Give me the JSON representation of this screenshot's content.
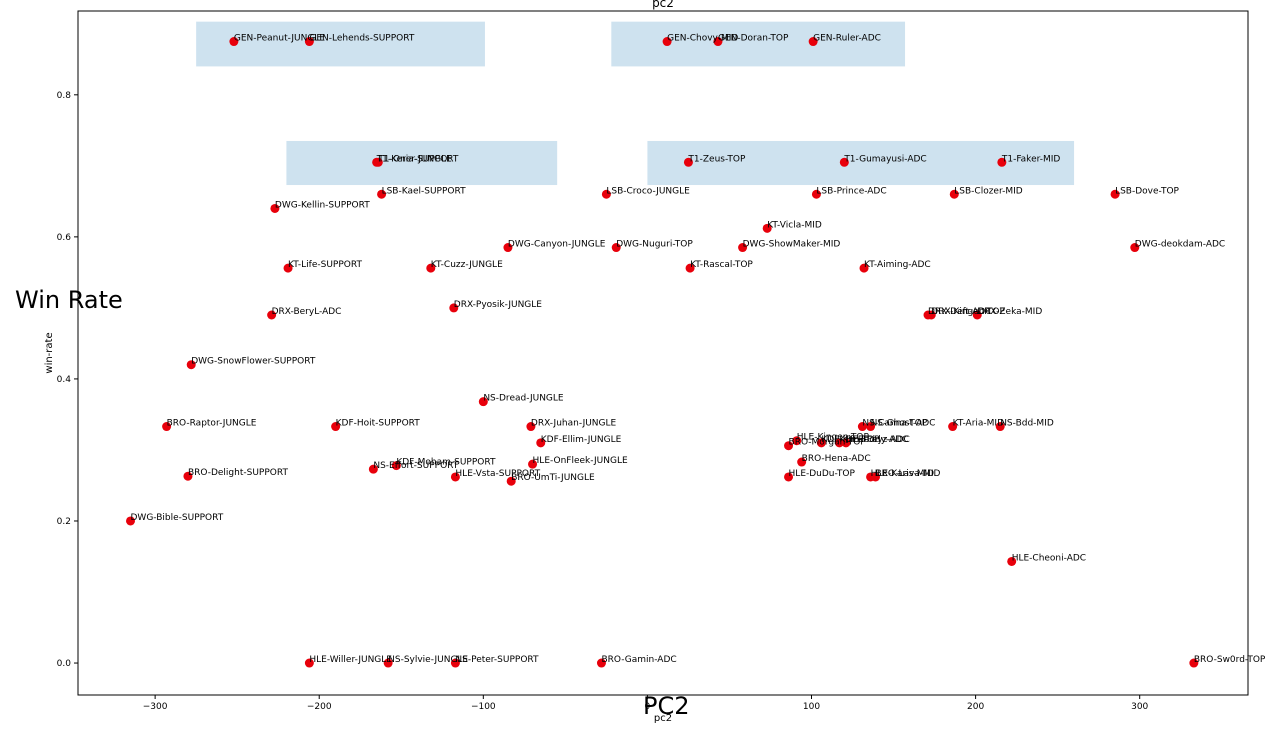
{
  "chart_data": {
    "type": "scatter",
    "title": "pc2",
    "xlabel": "pc2",
    "ylabel": "win-rate",
    "overlay_xlabel": "PC2",
    "overlay_ylabel": "Win Rate",
    "xlim": [
      -347,
      366
    ],
    "ylim": [
      -0.045,
      0.918
    ],
    "xticks": [
      -300,
      -200,
      -100,
      0,
      100,
      200,
      300
    ],
    "yticks": [
      0.0,
      0.2,
      0.4,
      0.6,
      0.8
    ],
    "xtick_labels": [
      "−300",
      "−200",
      "−100",
      "0",
      "100",
      "200",
      "300"
    ],
    "ytick_labels": [
      "0.0",
      "0.2",
      "0.4",
      "0.6",
      "0.8"
    ],
    "marker_color": "#e8000b",
    "highlight_color": "#b4d2e6",
    "highlight_regions": [
      {
        "x": [
          -275,
          -99
        ],
        "y": [
          0.84,
          0.903
        ]
      },
      {
        "x": [
          -22,
          157
        ],
        "y": [
          0.84,
          0.903
        ]
      },
      {
        "x": [
          -220,
          -55
        ],
        "y": [
          0.673,
          0.735
        ]
      },
      {
        "x": [
          0,
          260
        ],
        "y": [
          0.673,
          0.735
        ]
      }
    ],
    "points": [
      {
        "label": "GEN-Peanut-JUNGLE",
        "x": -252,
        "y": 0.875
      },
      {
        "label": "GEN-Lehends-SUPPORT",
        "x": -206,
        "y": 0.875
      },
      {
        "label": "GEN-Chovy-MID",
        "x": 12,
        "y": 0.875
      },
      {
        "label": "GEN-Doran-TOP",
        "x": 43,
        "y": 0.875
      },
      {
        "label": "GEN-Ruler-ADC",
        "x": 101,
        "y": 0.875
      },
      {
        "label": "T1-Oner-JUNGLE",
        "x": -164,
        "y": 0.705
      },
      {
        "label": "T1-Keria-SUPPORT",
        "x": -165,
        "y": 0.705
      },
      {
        "label": "T1-Zeus-TOP",
        "x": 25,
        "y": 0.705
      },
      {
        "label": "T1-Gumayusi-ADC",
        "x": 120,
        "y": 0.705
      },
      {
        "label": "T1-Faker-MID",
        "x": 216,
        "y": 0.705
      },
      {
        "label": "LSB-Kael-SUPPORT",
        "x": -162,
        "y": 0.66
      },
      {
        "label": "LSB-Croco-JUNGLE",
        "x": -25,
        "y": 0.66
      },
      {
        "label": "LSB-Prince-ADC",
        "x": 103,
        "y": 0.66
      },
      {
        "label": "LSB-Clozer-MID",
        "x": 187,
        "y": 0.66
      },
      {
        "label": "LSB-Dove-TOP",
        "x": 285,
        "y": 0.66
      },
      {
        "label": "DWG-Kellin-SUPPORT",
        "x": -227,
        "y": 0.64
      },
      {
        "label": "KT-Vicla-MID",
        "x": 73,
        "y": 0.612
      },
      {
        "label": "DWG-Canyon-JUNGLE",
        "x": -85,
        "y": 0.585
      },
      {
        "label": "DWG-Nuguri-TOP",
        "x": -19,
        "y": 0.585
      },
      {
        "label": "DWG-ShowMaker-MID",
        "x": 58,
        "y": 0.585
      },
      {
        "label": "DWG-deokdam-ADC",
        "x": 297,
        "y": 0.585
      },
      {
        "label": "KT-Life-SUPPORT",
        "x": -219,
        "y": 0.556
      },
      {
        "label": "KT-Cuzz-JUNGLE",
        "x": -132,
        "y": 0.556
      },
      {
        "label": "KT-Rascal-TOP",
        "x": 26,
        "y": 0.556
      },
      {
        "label": "KT-Aiming-ADC",
        "x": 132,
        "y": 0.556
      },
      {
        "label": "DRX-Pyosik-JUNGLE",
        "x": -118,
        "y": 0.5
      },
      {
        "label": "DRX-BeryL-ADC",
        "x": -229,
        "y": 0.49
      },
      {
        "label": "DRX-Deft-ADC",
        "x": 171,
        "y": 0.49
      },
      {
        "label": "DRX-Kingen-TOP",
        "x": 173,
        "y": 0.49
      },
      {
        "label": "DRX-Zeka-MID",
        "x": 201,
        "y": 0.49
      },
      {
        "label": "DWG-SnowFlower-SUPPORT",
        "x": -278,
        "y": 0.42
      },
      {
        "label": "NS-Dread-JUNGLE",
        "x": -100,
        "y": 0.368
      },
      {
        "label": "BRO-Raptor-JUNGLE",
        "x": -293,
        "y": 0.333
      },
      {
        "label": "KDF-Hoit-SUPPORT",
        "x": -190,
        "y": 0.333
      },
      {
        "label": "DRX-Juhan-JUNGLE",
        "x": -71,
        "y": 0.333
      },
      {
        "label": "NS-Canna-TOP",
        "x": 131,
        "y": 0.333
      },
      {
        "label": "NS-Ghost-ADC",
        "x": 136,
        "y": 0.333
      },
      {
        "label": "KT-Aria-MID",
        "x": 186,
        "y": 0.333
      },
      {
        "label": "NS-Bdd-MID",
        "x": 215,
        "y": 0.333
      },
      {
        "label": "KDF-Ellim-JUNGLE",
        "x": -65,
        "y": 0.31
      },
      {
        "label": "HLE-Kingen-TOP",
        "x": 91,
        "y": 0.313
      },
      {
        "label": "KDF-Kiin-TOP",
        "x": 106,
        "y": 0.31
      },
      {
        "label": "KDF-Teddy-ADC",
        "x": 117,
        "y": 0.31
      },
      {
        "label": "HLE-Peyz-ADC",
        "x": 121,
        "y": 0.31
      },
      {
        "label": "BRO-Morgan-TOP",
        "x": 86,
        "y": 0.306
      },
      {
        "label": "BRO-Hena-ADC",
        "x": 94,
        "y": 0.283
      },
      {
        "label": "KDF-Moham-SUPPORT",
        "x": -153,
        "y": 0.278
      },
      {
        "label": "NS-Effort-SUPPORT",
        "x": -167,
        "y": 0.273
      },
      {
        "label": "HLE-OnFleek-JUNGLE",
        "x": -70,
        "y": 0.28
      },
      {
        "label": "BRO-Delight-SUPPORT",
        "x": -280,
        "y": 0.263
      },
      {
        "label": "HLE-Vsta-SUPPORT",
        "x": -117,
        "y": 0.262
      },
      {
        "label": "BRO-UmTi-JUNGLE",
        "x": -83,
        "y": 0.256
      },
      {
        "label": "HLE-DuDu-TOP",
        "x": 86,
        "y": 0.262
      },
      {
        "label": "HLE-Karis-MID",
        "x": 136,
        "y": 0.262
      },
      {
        "label": "BRO-Lava-MID",
        "x": 139,
        "y": 0.262
      },
      {
        "label": "DWG-Bible-SUPPORT",
        "x": -315,
        "y": 0.2
      },
      {
        "label": "HLE-Cheoni-ADC",
        "x": 222,
        "y": 0.143
      },
      {
        "label": "HLE-Willer-JUNGLE",
        "x": -206,
        "y": 0.0
      },
      {
        "label": "NS-Sylvie-JUNGLE",
        "x": -158,
        "y": 0.0
      },
      {
        "label": "NS-Peter-SUPPORT",
        "x": -117,
        "y": 0.0
      },
      {
        "label": "BRO-Gamin-ADC",
        "x": -28,
        "y": 0.0
      },
      {
        "label": "BRO-Sw0rd-TOP",
        "x": 333,
        "y": 0.0
      }
    ]
  }
}
